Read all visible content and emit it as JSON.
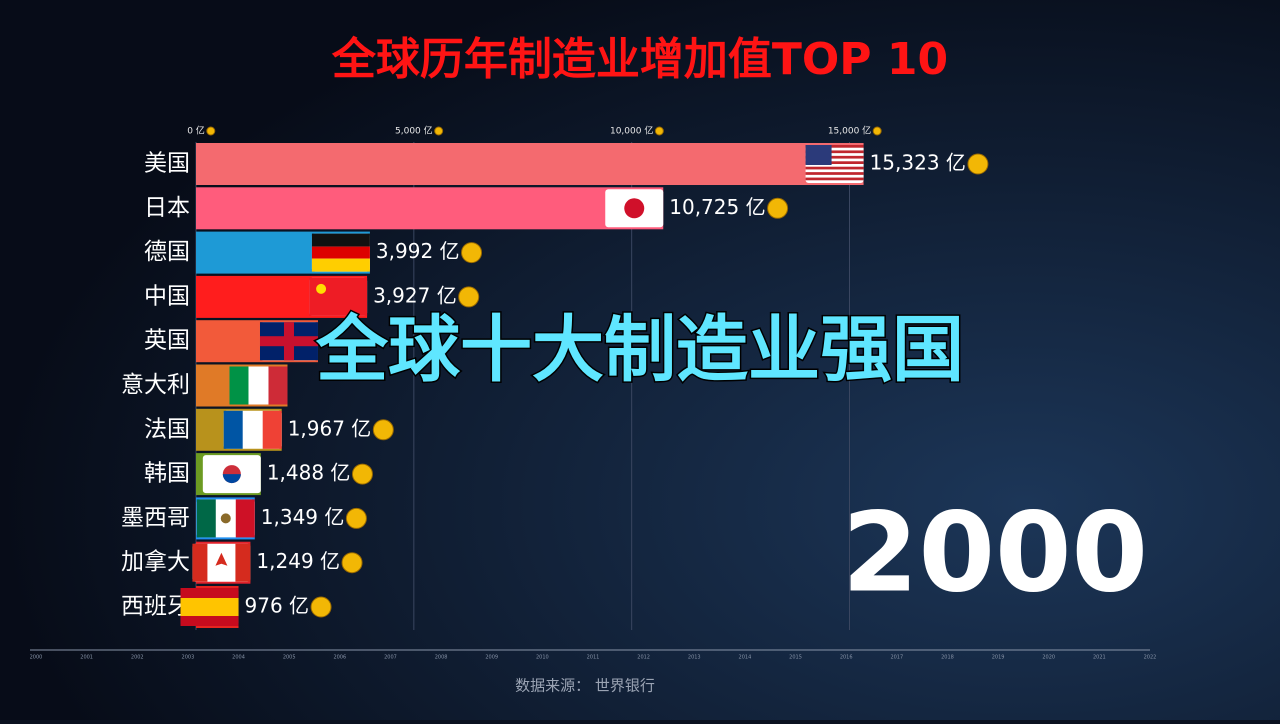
{
  "chart_data": {
    "type": "bar",
    "orientation": "horizontal",
    "title": "全球历年制造业增加值TOP 10",
    "categories": [
      "美国",
      "日本",
      "德国",
      "中国",
      "英国",
      "意大利",
      "法国",
      "韩国",
      "墨西哥",
      "加拿大",
      "西班牙"
    ],
    "values": [
      15323,
      10725,
      3992,
      3927,
      2800,
      2100,
      1967,
      1488,
      1349,
      1249,
      976
    ],
    "value_labels": [
      "15,323 亿",
      "10,725 亿",
      "3,992 亿",
      "3,927 亿",
      null,
      null,
      "1,967 亿",
      "1,488 亿",
      "1,349 亿",
      "1,249 亿",
      "976 亿"
    ],
    "colors": [
      "#f46a6f",
      "#ff5c7c",
      "#1e9ad6",
      "#ff1d1d",
      "#f25a3a",
      "#e07a27",
      "#b8921c",
      "#6c9b22",
      "#1f8ff0",
      "#e3222c",
      "#e52420"
    ],
    "xlim": [
      0,
      15700
    ],
    "xticks": [
      {
        "value": 0,
        "label": "0 亿"
      },
      {
        "value": 5000,
        "label": "5,000 亿"
      },
      {
        "value": 10000,
        "label": "10,000 亿"
      },
      {
        "value": 15000,
        "label": "15,000 亿"
      }
    ],
    "grid": true
  },
  "overlay_text": "全球十大制造业强国",
  "current_year": "2000",
  "timeline": [
    "2000",
    "2001",
    "2002",
    "2003",
    "2004",
    "2005",
    "2006",
    "2007",
    "2008",
    "2009",
    "2010",
    "2011",
    "2012",
    "2013",
    "2014",
    "2015",
    "2016",
    "2017",
    "2018",
    "2019",
    "2020",
    "2021",
    "2022"
  ],
  "source": "数据来源： 世界银行"
}
